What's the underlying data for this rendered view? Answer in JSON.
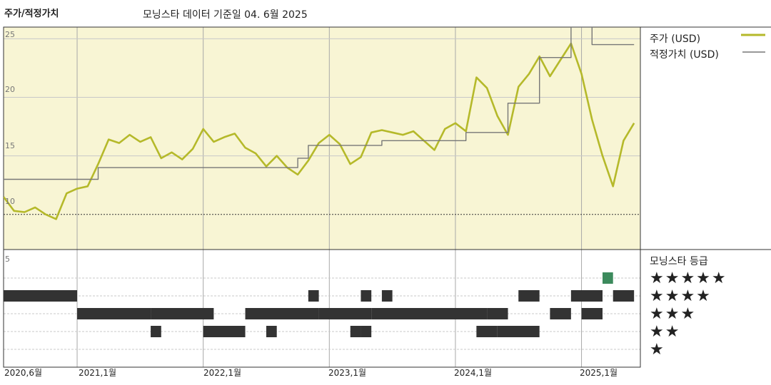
{
  "header": {
    "title": "주가/적정가치",
    "subtitle": "모닝스타 데이터 기준일 04. 6월 2025"
  },
  "legend": {
    "price_label": "주가 (USD)",
    "fair_label": "적정가치 (USD)",
    "price_color": "#b5b92a",
    "fair_color": "#777777"
  },
  "rating": {
    "title": "모닝스타 등급",
    "stars": [
      "★★★★★",
      "★★★★",
      "★★★",
      "★★",
      "★"
    ]
  },
  "x_ticks": [
    "2020,6월",
    "2021,1월",
    "2022,1월",
    "2023,1월",
    "2024,1월",
    "2025,1월"
  ],
  "y_ticks": [
    "25",
    "20",
    "15",
    "10"
  ],
  "rating_axis_label": "5",
  "chart_data": {
    "type": "line",
    "title": "",
    "x_start": "2020-06",
    "x_end": "2025-06",
    "ylim": [
      7,
      26
    ],
    "grid": true,
    "legend_position": "right",
    "series": [
      {
        "name": "주가 (USD)",
        "color": "#b5b92a",
        "points": [
          [
            "2020-06",
            11.5
          ],
          [
            "2020-07",
            10.3
          ],
          [
            "2020-08",
            10.2
          ],
          [
            "2020-09",
            10.6
          ],
          [
            "2020-10",
            10.0
          ],
          [
            "2020-11",
            9.6
          ],
          [
            "2020-12",
            11.8
          ],
          [
            "2021-01",
            12.2
          ],
          [
            "2021-02",
            12.4
          ],
          [
            "2021-03",
            14.3
          ],
          [
            "2021-04",
            16.4
          ],
          [
            "2021-05",
            16.1
          ],
          [
            "2021-06",
            16.8
          ],
          [
            "2021-07",
            16.2
          ],
          [
            "2021-08",
            16.6
          ],
          [
            "2021-09",
            14.8
          ],
          [
            "2021-10",
            15.3
          ],
          [
            "2021-11",
            14.7
          ],
          [
            "2021-12",
            15.6
          ],
          [
            "2022-01",
            17.3
          ],
          [
            "2022-02",
            16.2
          ],
          [
            "2022-03",
            16.6
          ],
          [
            "2022-04",
            16.9
          ],
          [
            "2022-05",
            15.7
          ],
          [
            "2022-06",
            15.2
          ],
          [
            "2022-07",
            14.1
          ],
          [
            "2022-08",
            15.0
          ],
          [
            "2022-09",
            14.0
          ],
          [
            "2022-10",
            13.4
          ],
          [
            "2022-11",
            14.6
          ],
          [
            "2022-12",
            16.1
          ],
          [
            "2023-01",
            16.8
          ],
          [
            "2023-02",
            16.0
          ],
          [
            "2023-03",
            14.3
          ],
          [
            "2023-04",
            14.9
          ],
          [
            "2023-05",
            17.0
          ],
          [
            "2023-06",
            17.2
          ],
          [
            "2023-07",
            17.0
          ],
          [
            "2023-08",
            16.8
          ],
          [
            "2023-09",
            17.1
          ],
          [
            "2023-10",
            16.3
          ],
          [
            "2023-11",
            15.5
          ],
          [
            "2023-12",
            17.3
          ],
          [
            "2024-01",
            17.8
          ],
          [
            "2024-02",
            17.1
          ],
          [
            "2024-03",
            21.7
          ],
          [
            "2024-04",
            20.8
          ],
          [
            "2024-05",
            18.4
          ],
          [
            "2024-06",
            16.8
          ],
          [
            "2024-07",
            20.9
          ],
          [
            "2024-08",
            22.0
          ],
          [
            "2024-09",
            23.5
          ],
          [
            "2024-10",
            21.8
          ],
          [
            "2024-11",
            23.2
          ],
          [
            "2024-12",
            24.6
          ],
          [
            "2025-01",
            22.0
          ],
          [
            "2025-02",
            18.1
          ],
          [
            "2025-03",
            15.0
          ],
          [
            "2025-04",
            12.4
          ],
          [
            "2025-05",
            16.3
          ],
          [
            "2025-06",
            17.8
          ]
        ]
      },
      {
        "name": "적정가치 (USD)",
        "color": "#777777",
        "points": [
          [
            "2020-06",
            13.0
          ],
          [
            "2021-03",
            13.0
          ],
          [
            "2021-03",
            14.0
          ],
          [
            "2022-10",
            14.0
          ],
          [
            "2022-10",
            14.8
          ],
          [
            "2022-11",
            14.8
          ],
          [
            "2022-11",
            15.9
          ],
          [
            "2023-06",
            15.9
          ],
          [
            "2023-06",
            16.3
          ],
          [
            "2024-02",
            16.3
          ],
          [
            "2024-02",
            17.0
          ],
          [
            "2024-06",
            17.0
          ],
          [
            "2024-06",
            19.5
          ],
          [
            "2024-09",
            19.5
          ],
          [
            "2024-09",
            23.4
          ],
          [
            "2024-12",
            23.4
          ],
          [
            "2024-12",
            26.0
          ],
          [
            "2025-02",
            26.0
          ],
          [
            "2025-02",
            24.5
          ],
          [
            "2025-06",
            24.5
          ]
        ]
      }
    ],
    "rating_history": [
      {
        "stars": 5,
        "ranges": [
          [
            "2025-03",
            "2025-03"
          ]
        ]
      },
      {
        "stars": 4,
        "ranges": [
          [
            "2020-06",
            "2020-12"
          ],
          [
            "2022-11",
            "2022-11"
          ],
          [
            "2023-04",
            "2023-04"
          ],
          [
            "2023-06",
            "2023-06"
          ],
          [
            "2024-07",
            "2024-08"
          ],
          [
            "2024-12",
            "2025-02"
          ],
          [
            "2025-04",
            "2025-05"
          ]
        ]
      },
      {
        "stars": 3,
        "ranges": [
          [
            "2021-01",
            "2021-07"
          ],
          [
            "2021-08",
            "2022-01"
          ],
          [
            "2022-05",
            "2022-11"
          ],
          [
            "2022-12",
            "2023-04"
          ],
          [
            "2023-05",
            "2024-03"
          ],
          [
            "2024-04",
            "2024-05"
          ],
          [
            "2024-10",
            "2024-11"
          ],
          [
            "2025-01",
            "2025-02"
          ]
        ]
      },
      {
        "stars": 2,
        "ranges": [
          [
            "2021-08",
            "2021-08"
          ],
          [
            "2022-01",
            "2022-04"
          ],
          [
            "2022-07",
            "2022-07"
          ],
          [
            "2023-03",
            "2023-03"
          ],
          [
            "2023-04",
            "2023-04"
          ],
          [
            "2024-03",
            "2024-04"
          ],
          [
            "2024-05",
            "2024-08"
          ]
        ]
      },
      {
        "stars": 1,
        "ranges": []
      }
    ]
  }
}
